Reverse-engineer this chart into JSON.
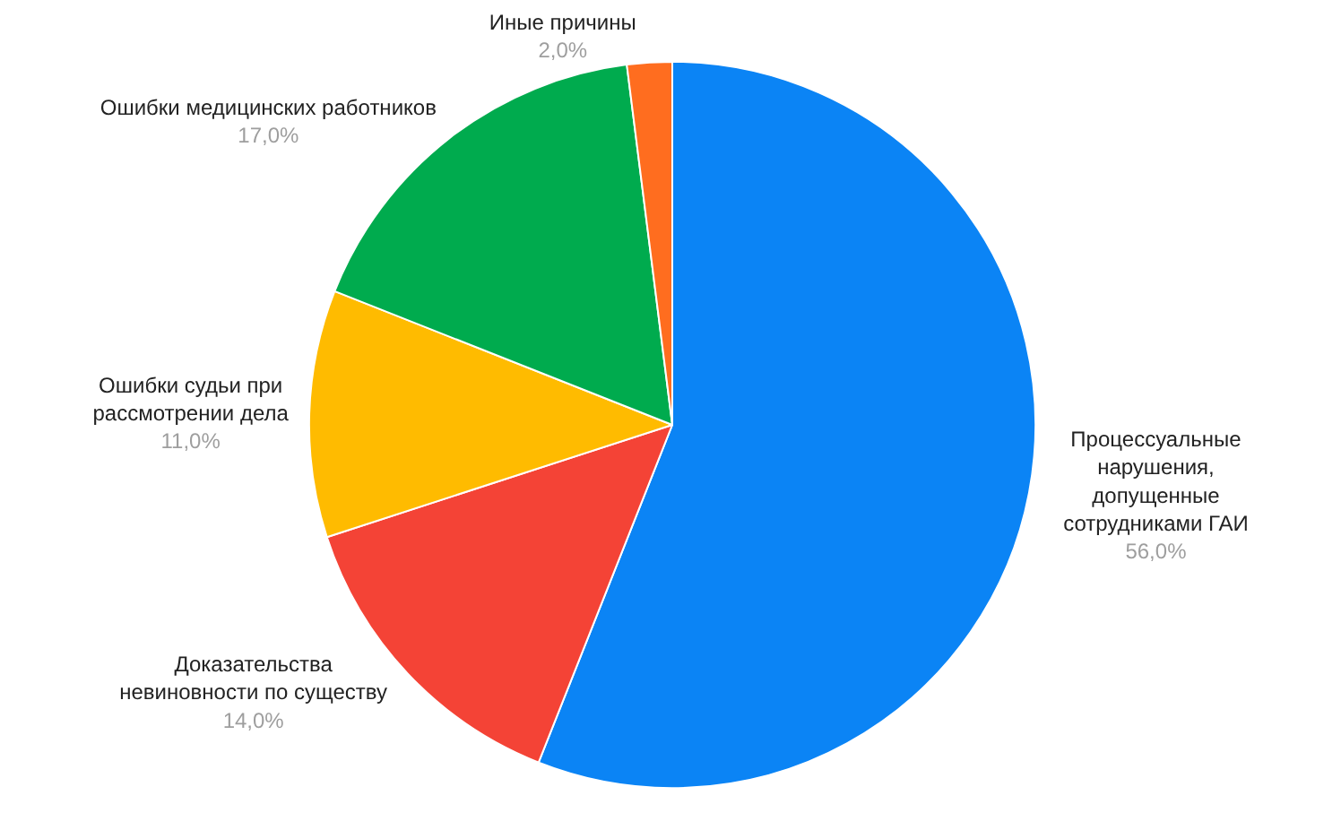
{
  "chart_data": {
    "type": "pie",
    "categories": [
      "Процессуальные нарушения, допущенные сотрудниками ГАИ",
      "Доказательства невиновности по существу",
      "Ошибки судьи при рассмотрении дела",
      "Ошибки медицинских работников",
      "Иные причины"
    ],
    "values": [
      56,
      14,
      11,
      17,
      2
    ],
    "value_labels": [
      "56,0%",
      "14,0%",
      "11,0%",
      "17,0%",
      "2,0%"
    ],
    "colors": [
      "#0b84f5",
      "#f44336",
      "#ffbb00",
      "#00ab4e",
      "#ff6d1f"
    ],
    "legend": false
  }
}
